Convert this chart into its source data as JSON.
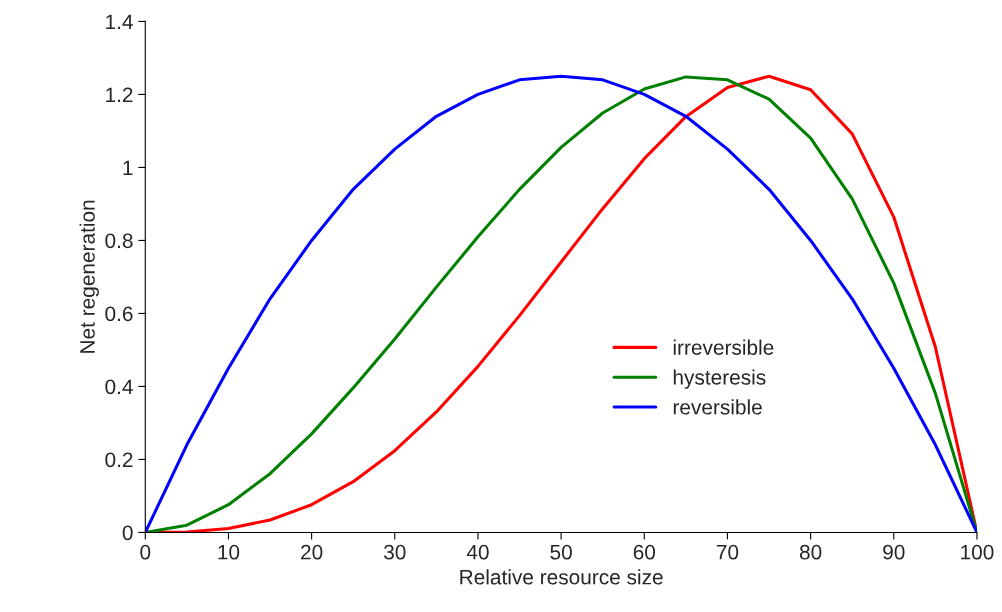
{
  "chart_data": {
    "type": "line",
    "xlabel": "Relative resource size",
    "ylabel": "Net regeneration",
    "x": [
      0,
      5,
      10,
      15,
      20,
      25,
      30,
      35,
      40,
      45,
      50,
      55,
      60,
      65,
      70,
      75,
      80,
      85,
      90,
      95,
      100
    ],
    "series": [
      {
        "name": "irreversible",
        "color": "#ff0000",
        "values": [
          0,
          0.001,
          0.011,
          0.034,
          0.076,
          0.139,
          0.224,
          0.33,
          0.455,
          0.594,
          0.741,
          0.887,
          1.024,
          1.139,
          1.219,
          1.25,
          1.213,
          1.092,
          0.864,
          0.508,
          0
        ]
      },
      {
        "name": "hysteresis",
        "color": "#008000",
        "values": [
          0,
          0.02,
          0.076,
          0.161,
          0.27,
          0.396,
          0.53,
          0.672,
          0.81,
          0.94,
          1.055,
          1.149,
          1.215,
          1.248,
          1.24,
          1.187,
          1.08,
          0.914,
          0.683,
          0.381,
          0
        ]
      },
      {
        "name": "reversible",
        "color": "#0000ff",
        "values": [
          0,
          0.24,
          0.45,
          0.64,
          0.8,
          0.94,
          1.05,
          1.14,
          1.2,
          1.24,
          1.25,
          1.24,
          1.2,
          1.14,
          1.05,
          0.94,
          0.8,
          0.64,
          0.45,
          0.24,
          0
        ]
      }
    ],
    "xlim": [
      0,
      100
    ],
    "xticks": [
      0,
      10,
      20,
      30,
      40,
      50,
      60,
      70,
      80,
      90,
      100
    ],
    "ylim": [
      0,
      1.4
    ],
    "yticks": [
      0,
      {
        "value": 0.2,
        "label": "0.2"
      },
      {
        "value": 0.4,
        "label": "0.4"
      },
      {
        "value": 0.6,
        "label": "0.6"
      },
      {
        "value": 0.8,
        "label": "0.8"
      },
      1,
      {
        "value": 1.2,
        "label": "1.2"
      },
      {
        "value": 1.4,
        "label": "1.4"
      }
    ],
    "grid": false,
    "legend": "center",
    "marker": "none",
    "line_style": "solid"
  }
}
